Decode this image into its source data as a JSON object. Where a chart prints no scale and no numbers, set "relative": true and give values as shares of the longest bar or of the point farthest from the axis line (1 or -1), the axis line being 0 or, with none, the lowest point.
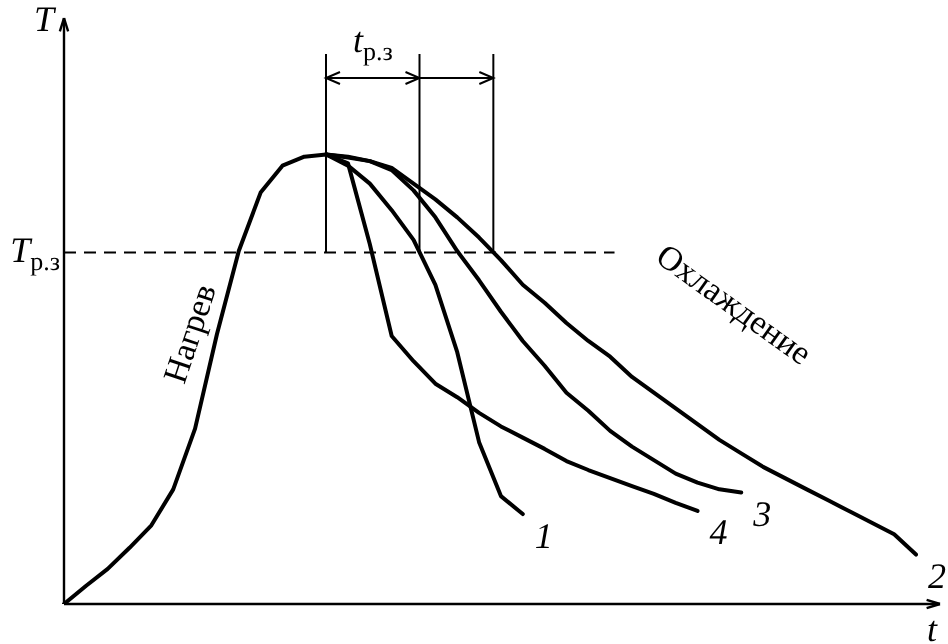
{
  "chart_data": {
    "type": "line",
    "relative": true,
    "xlabel": "t",
    "ylabel": "T",
    "legend": false,
    "marker": "none",
    "line_style": "solid",
    "categories": [
      null,
      null,
      null,
      null,
      null,
      null,
      null,
      null,
      null,
      null,
      null,
      null,
      null,
      null,
      null,
      null,
      null,
      null,
      null,
      null,
      null,
      null,
      null,
      null,
      null,
      null,
      null,
      null,
      null,
      null,
      null,
      null,
      null,
      null,
      null,
      null,
      null,
      null,
      null,
      null
    ],
    "series": [
      {
        "name": "1",
        "color": "#000000",
        "values": [
          null,
          null,
          null,
          null,
          null,
          null,
          null,
          null,
          null,
          null,
          null,
          null,
          1,
          0.975,
          0.935,
          0.876,
          0.81,
          0.71,
          0.56,
          0.36,
          0.24,
          0.2,
          null,
          null,
          null,
          null,
          null,
          null,
          null,
          null,
          null,
          null,
          null,
          null,
          null,
          null,
          null,
          null,
          null,
          null
        ]
      },
      {
        "name": "2",
        "color": "#000000",
        "values": [
          0,
          0.04,
          0.078,
          0.125,
          0.175,
          0.255,
          0.39,
          0.6,
          0.785,
          0.915,
          0.975,
          0.995,
          1,
          0.995,
          0.985,
          0.97,
          0.935,
          0.9,
          0.86,
          0.815,
          0.765,
          0.71,
          0.67,
          0.625,
          0.585,
          0.55,
          0.505,
          0.47,
          0.435,
          0.4,
          0.365,
          0.335,
          0.305,
          0.28,
          0.255,
          0.23,
          0.205,
          0.18,
          0.155,
          0.11
        ]
      },
      {
        "name": "3",
        "color": "#000000",
        "values": [
          null,
          null,
          null,
          null,
          null,
          null,
          null,
          null,
          null,
          null,
          null,
          null,
          1,
          0.993,
          0.985,
          0.965,
          0.92,
          0.86,
          0.785,
          0.72,
          0.65,
          0.585,
          0.53,
          0.47,
          0.43,
          0.385,
          0.35,
          0.32,
          0.29,
          0.27,
          0.255,
          0.248,
          null,
          null,
          null,
          null,
          null,
          null,
          null,
          null
        ]
      },
      {
        "name": "4",
        "color": "#000000",
        "values": [
          null,
          null,
          null,
          null,
          null,
          null,
          null,
          null,
          null,
          null,
          null,
          null,
          1,
          0.98,
          0.8,
          0.596,
          0.54,
          0.49,
          0.46,
          0.425,
          0.395,
          0.37,
          0.345,
          0.318,
          0.298,
          0.28,
          0.262,
          0.245,
          0.225,
          0.207,
          null,
          null,
          null,
          null,
          null,
          null,
          null,
          null,
          null,
          null
        ]
      }
    ],
    "ref_lines": [
      {
        "axis": "y",
        "value": 0.782,
        "label": "T$_{р.з}$",
        "line_style": "dashed",
        "color": "#000000"
      }
    ],
    "annotations": [
      "Нагрев",
      "Охлаждение",
      "t$_{р.з}$"
    ]
  }
}
